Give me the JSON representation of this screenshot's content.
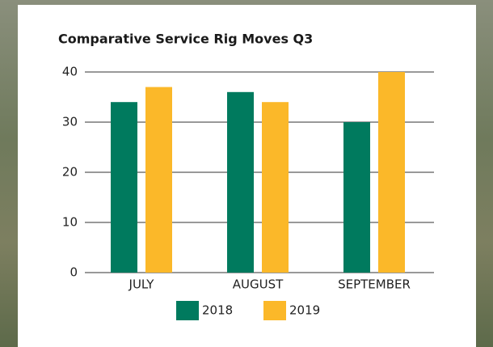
{
  "chart_data": {
    "type": "bar",
    "title": "Comparative Service Rig Moves Q3",
    "categories": [
      "JULY",
      "AUGUST",
      "SEPTEMBER"
    ],
    "series": [
      {
        "name": "2018",
        "color": "#007a5e",
        "values": [
          34,
          36,
          30
        ]
      },
      {
        "name": "2019",
        "color": "#fbb829",
        "values": [
          37,
          34,
          40
        ]
      }
    ],
    "ylim": [
      0,
      40
    ],
    "yticks": [
      0,
      10,
      20,
      30,
      40
    ],
    "grid": true
  }
}
